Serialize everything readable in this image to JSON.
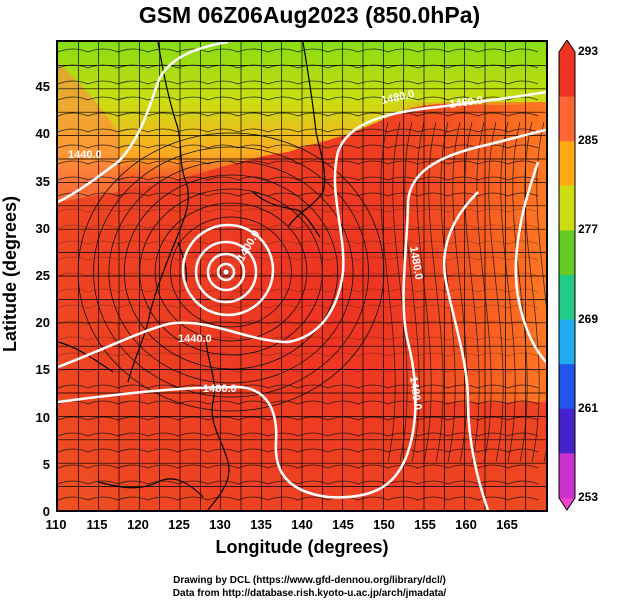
{
  "title": "GSM 06Z06Aug2023 (850.0hPa)",
  "axes": {
    "xlabel": "Longitude (degrees)",
    "ylabel": "Latitude  (degrees)",
    "xticks": [
      "110",
      "115",
      "120",
      "125",
      "130",
      "135",
      "140",
      "145",
      "150",
      "155",
      "160",
      "165"
    ],
    "yticks": [
      "0",
      "5",
      "10",
      "15",
      "20",
      "25",
      "30",
      "35",
      "40",
      "45"
    ],
    "xlim": [
      110,
      170
    ],
    "ylim": [
      0,
      50
    ]
  },
  "colorbar": {
    "ticks": [
      "293",
      "285",
      "277",
      "269",
      "261",
      "253"
    ],
    "range": [
      253,
      293
    ],
    "colors": [
      "#cc33cc",
      "#4422cc",
      "#2255ee",
      "#22aaee",
      "#22cc88",
      "#66cc22",
      "#ccdd11",
      "#ffaa11",
      "#ff6633",
      "#ee3322"
    ]
  },
  "contours": [
    {
      "label": "1440.0"
    },
    {
      "label": "1480.0"
    },
    {
      "label": "1460.0"
    },
    {
      "label": "1440.0"
    },
    {
      "label": "1480.0"
    },
    {
      "label": "1480.0"
    },
    {
      "label": "1480.0"
    },
    {
      "label": "1400.0"
    }
  ],
  "typhoon_center": {
    "lon": 130,
    "lat": 28
  },
  "credits": {
    "line1": "Drawing by DCL (https://www.gfd-dennou.org/library/dcl/)",
    "line2": "Data from http://database.rish.kyoto-u.ac.jp/arch/jmadata/"
  }
}
